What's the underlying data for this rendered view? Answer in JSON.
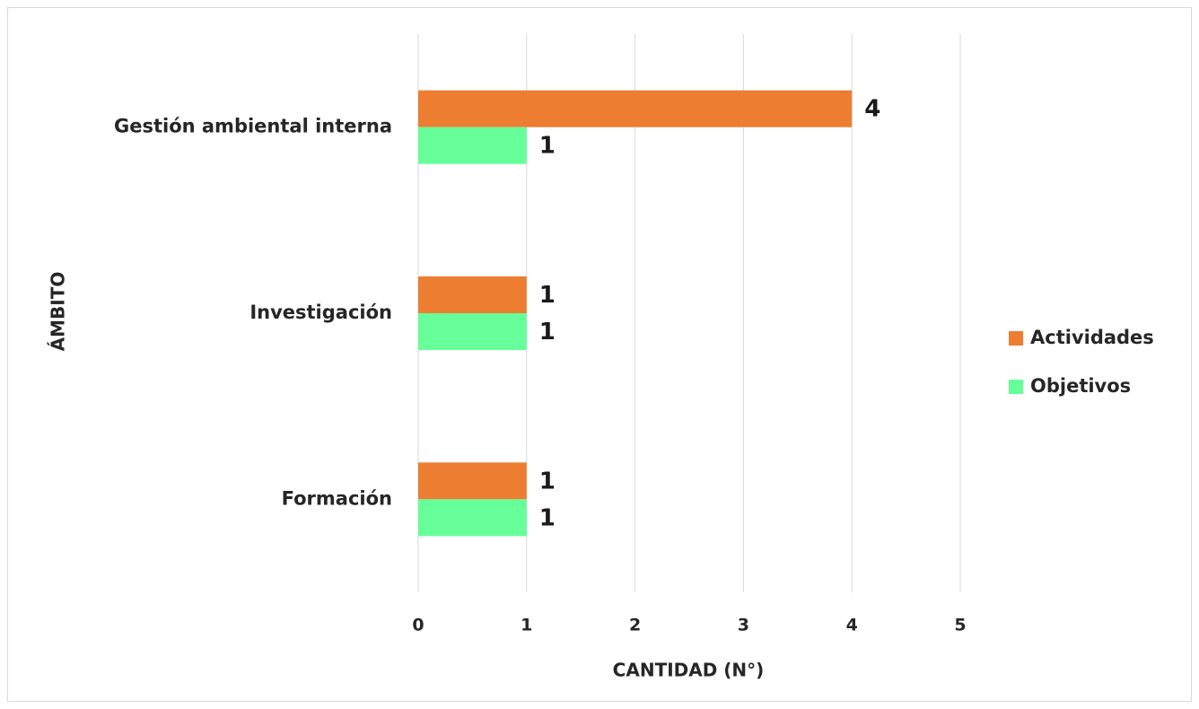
{
  "chart_data": {
    "type": "hbar",
    "xlabel": "CANTIDAD (N°)",
    "ylabel": "ÁMBITO",
    "categories": [
      "Gestión ambiental interna",
      "Investigación",
      "Formación"
    ],
    "series": [
      {
        "name": "Actividades",
        "color": "#ed7d31",
        "values": [
          4,
          1,
          1
        ]
      },
      {
        "name": "Objetivos",
        "color": "#66ff99",
        "values": [
          1,
          1,
          1
        ]
      }
    ],
    "xlim": [
      0,
      5
    ],
    "xticks": [
      0,
      1,
      2,
      3,
      4,
      5
    ],
    "grid": true,
    "legend": "right"
  }
}
